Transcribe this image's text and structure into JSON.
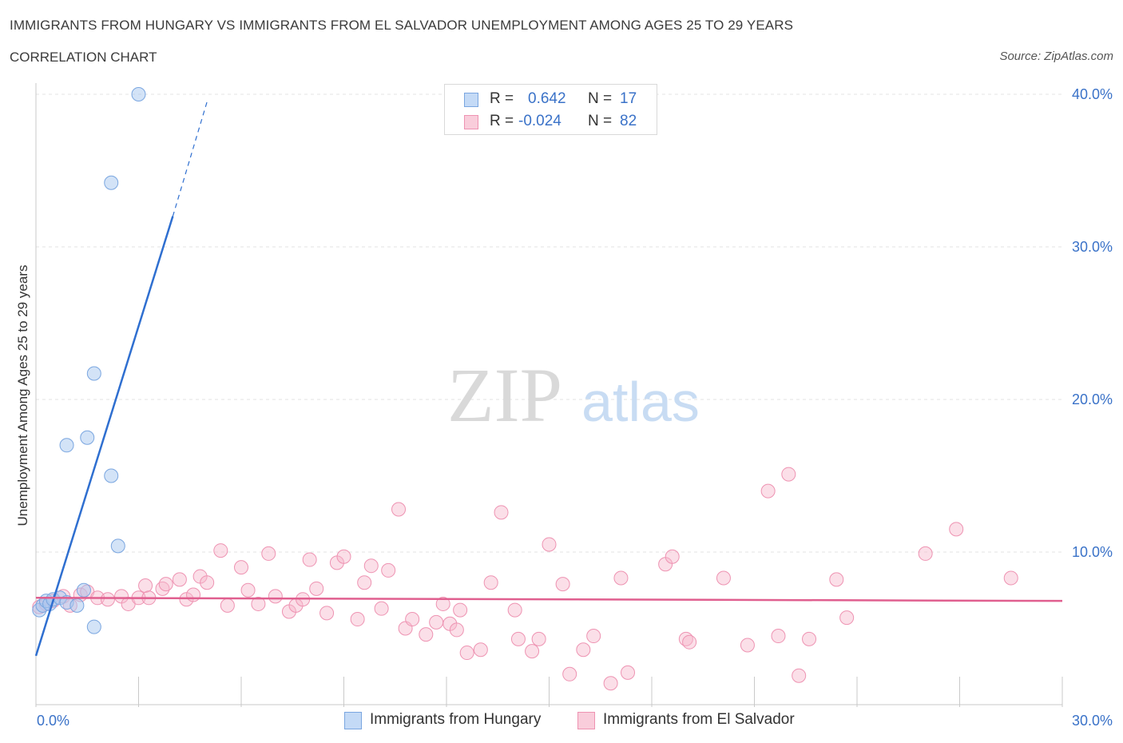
{
  "title": "IMMIGRANTS FROM HUNGARY VS IMMIGRANTS FROM EL SALVADOR UNEMPLOYMENT AMONG AGES 25 TO 29 YEARS",
  "subtitle": "CORRELATION CHART",
  "source": "Source: ZipAtlas.com",
  "watermark": {
    "zip": "ZIP",
    "atlas": "atlas"
  },
  "legend": {
    "rows": [
      {
        "r_label": "R =",
        "r_value": "0.642",
        "n_label": "N =",
        "n_value": "17"
      },
      {
        "r_label": "R =",
        "r_value": "-0.024",
        "n_label": "N =",
        "n_value": "82"
      }
    ]
  },
  "bottom_legend": {
    "hungary": "Immigrants from Hungary",
    "el_salvador": "Immigrants from El Salvador"
  },
  "colors": {
    "blue_fill": "#a8c8f0",
    "blue_stroke": "#7aa6e0",
    "blue_line": "#2f6fd0",
    "pink_fill": "#f6b7cb",
    "pink_stroke": "#ee93b2",
    "pink_line": "#e05f8f",
    "axis_text": "#3a72c8"
  },
  "chart_data": {
    "type": "scatter",
    "title": "IMMIGRANTS FROM HUNGARY VS IMMIGRANTS FROM EL SALVADOR UNEMPLOYMENT AMONG AGES 25 TO 29 YEARS",
    "xlabel": "",
    "ylabel": "Unemployment Among Ages 25 to 29 years",
    "xlim": [
      0,
      30
    ],
    "ylim": [
      0,
      40
    ],
    "x_tick_labels": [
      "0.0%",
      "30.0%"
    ],
    "y_ticks": [
      10,
      20,
      30,
      40
    ],
    "y_tick_labels": [
      "10.0%",
      "20.0%",
      "30.0%",
      "40.0%"
    ],
    "grid": true,
    "series": [
      {
        "name": "Immigrants from Hungary",
        "color": "blue",
        "points": [
          [
            0.1,
            6.2
          ],
          [
            0.2,
            6.5
          ],
          [
            0.3,
            6.8
          ],
          [
            0.4,
            6.6
          ],
          [
            0.5,
            6.9
          ],
          [
            0.7,
            7.0
          ],
          [
            0.9,
            6.7
          ],
          [
            1.2,
            6.5
          ],
          [
            1.4,
            7.5
          ],
          [
            1.7,
            5.1
          ],
          [
            0.9,
            17.0
          ],
          [
            1.5,
            17.5
          ],
          [
            1.7,
            21.7
          ],
          [
            2.2,
            15.0
          ],
          [
            2.4,
            10.4
          ],
          [
            2.2,
            34.2
          ],
          [
            3.0,
            40.0
          ]
        ],
        "trend": {
          "x0": 0.0,
          "y0": 3.2,
          "x1": 4.0,
          "y1": 32.0,
          "dash_x1": 5.0,
          "dash_y1": 39.5
        }
      },
      {
        "name": "Immigrants from El Salvador",
        "color": "pink",
        "points": [
          [
            0.1,
            6.4
          ],
          [
            0.3,
            6.6
          ],
          [
            0.5,
            6.8
          ],
          [
            0.8,
            7.1
          ],
          [
            1.0,
            6.5
          ],
          [
            1.3,
            7.2
          ],
          [
            1.5,
            7.4
          ],
          [
            1.8,
            7.0
          ],
          [
            2.1,
            6.9
          ],
          [
            2.5,
            7.1
          ],
          [
            2.7,
            6.6
          ],
          [
            3.0,
            7.0
          ],
          [
            3.2,
            7.8
          ],
          [
            3.3,
            7.0
          ],
          [
            3.7,
            7.6
          ],
          [
            3.8,
            7.9
          ],
          [
            4.2,
            8.2
          ],
          [
            4.4,
            6.9
          ],
          [
            4.6,
            7.2
          ],
          [
            4.8,
            8.4
          ],
          [
            5.0,
            8.0
          ],
          [
            5.4,
            10.1
          ],
          [
            5.6,
            6.5
          ],
          [
            6.0,
            9.0
          ],
          [
            6.2,
            7.5
          ],
          [
            6.5,
            6.6
          ],
          [
            6.8,
            9.9
          ],
          [
            7.0,
            7.1
          ],
          [
            7.4,
            6.1
          ],
          [
            7.6,
            6.5
          ],
          [
            7.8,
            6.9
          ],
          [
            8.0,
            9.5
          ],
          [
            8.2,
            7.6
          ],
          [
            8.5,
            6.0
          ],
          [
            8.8,
            9.3
          ],
          [
            9.0,
            9.7
          ],
          [
            9.4,
            5.6
          ],
          [
            9.6,
            8.0
          ],
          [
            9.8,
            9.1
          ],
          [
            10.1,
            6.3
          ],
          [
            10.3,
            8.8
          ],
          [
            10.6,
            12.8
          ],
          [
            10.8,
            5.0
          ],
          [
            11.0,
            5.6
          ],
          [
            11.4,
            4.6
          ],
          [
            11.7,
            5.4
          ],
          [
            11.9,
            6.6
          ],
          [
            12.1,
            5.3
          ],
          [
            12.3,
            4.9
          ],
          [
            12.4,
            6.2
          ],
          [
            12.6,
            3.4
          ],
          [
            13.0,
            3.6
          ],
          [
            13.3,
            8.0
          ],
          [
            13.6,
            12.6
          ],
          [
            14.0,
            6.2
          ],
          [
            14.1,
            4.3
          ],
          [
            14.5,
            3.5
          ],
          [
            14.7,
            4.3
          ],
          [
            15.0,
            10.5
          ],
          [
            15.4,
            7.9
          ],
          [
            15.6,
            2.0
          ],
          [
            16.0,
            3.6
          ],
          [
            16.3,
            4.5
          ],
          [
            16.8,
            1.4
          ],
          [
            17.1,
            8.3
          ],
          [
            17.3,
            2.1
          ],
          [
            18.4,
            9.2
          ],
          [
            18.6,
            9.7
          ],
          [
            19.0,
            4.3
          ],
          [
            19.1,
            4.1
          ],
          [
            20.1,
            8.3
          ],
          [
            20.8,
            3.9
          ],
          [
            21.4,
            14.0
          ],
          [
            21.7,
            4.5
          ],
          [
            22.0,
            15.1
          ],
          [
            22.3,
            1.9
          ],
          [
            22.6,
            4.3
          ],
          [
            23.4,
            8.2
          ],
          [
            23.7,
            5.7
          ],
          [
            26.0,
            9.9
          ],
          [
            26.9,
            11.5
          ],
          [
            28.5,
            8.3
          ]
        ],
        "trend": {
          "x0": 0.0,
          "y0": 7.0,
          "x1": 30.0,
          "y1": 6.8
        }
      }
    ]
  }
}
